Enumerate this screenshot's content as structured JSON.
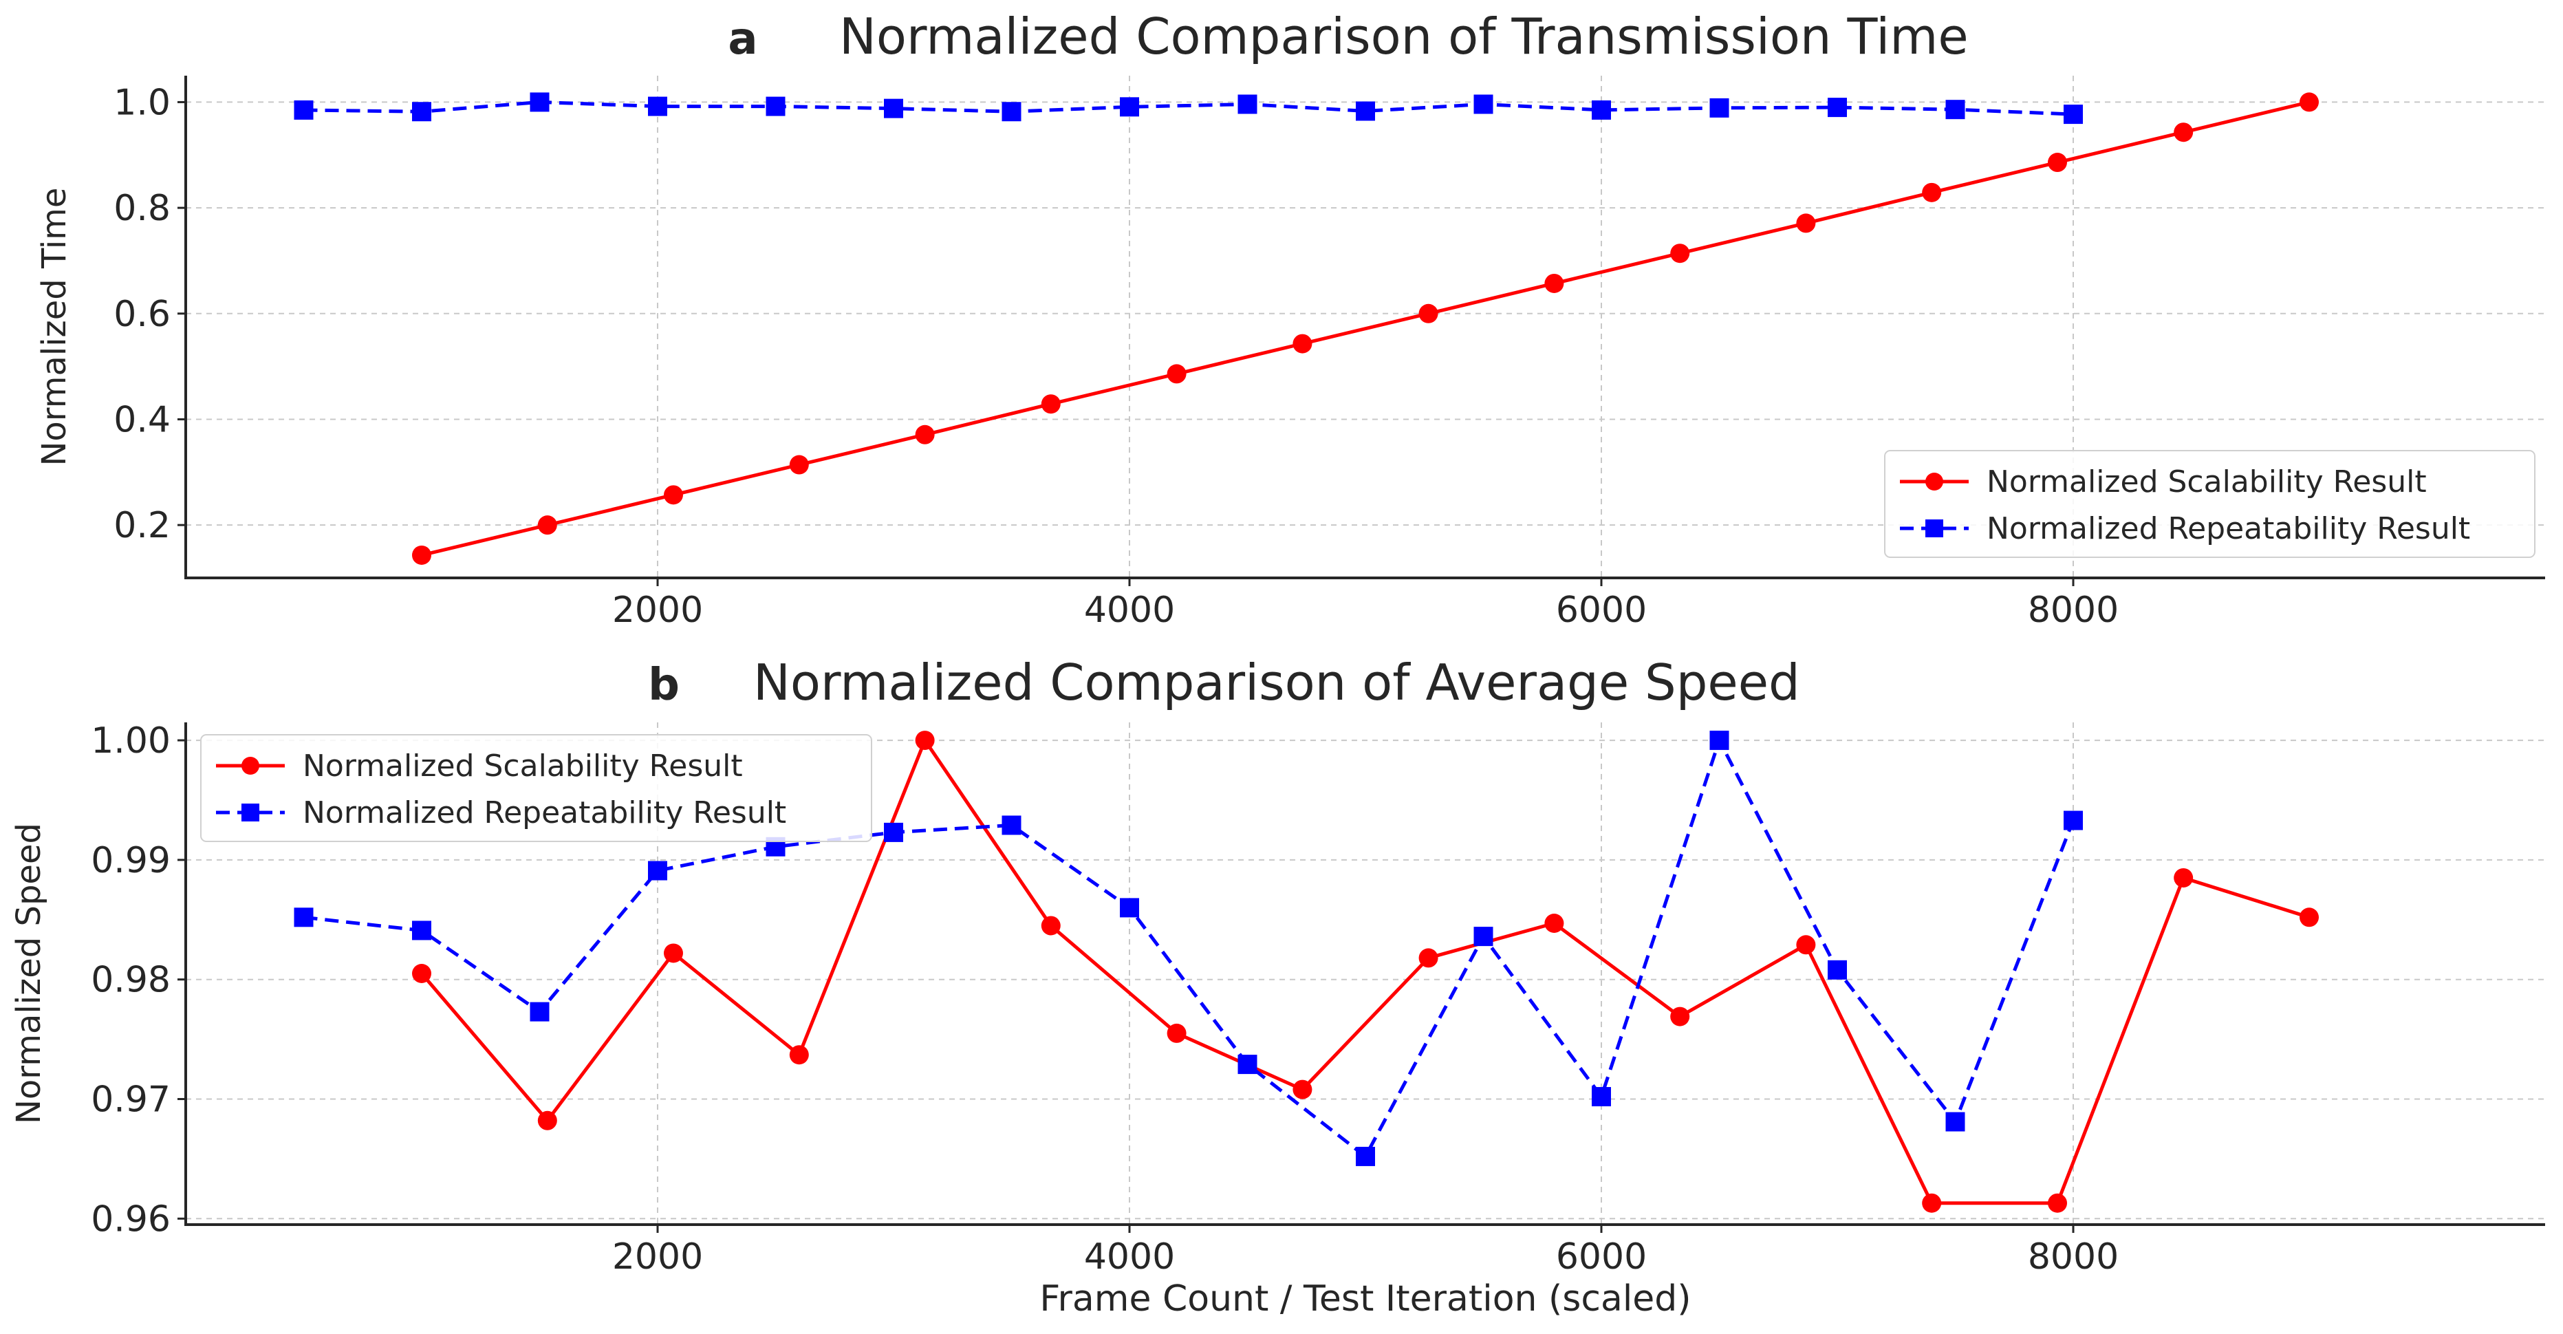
{
  "colors": {
    "scalability": "#ff0000",
    "repeatability": "#0000ff",
    "grid": "#c8c8c8",
    "axis": "#262626",
    "background": "#ffffff"
  },
  "chart_data": [
    {
      "type": "line",
      "panel_label": "a",
      "title": "Normalized Comparison of Transmission Time",
      "xlabel": "",
      "ylabel": "Normalized Time",
      "xlim": [
        0,
        10000
      ],
      "ylim": [
        0.1,
        1.05
      ],
      "xticks": [
        2000,
        4000,
        6000,
        8000
      ],
      "yticks": [
        0.2,
        0.4,
        0.6,
        0.8,
        1.0
      ],
      "ytick_labels": [
        "0.2",
        "0.4",
        "0.6",
        "0.8",
        "1.0"
      ],
      "grid": true,
      "legend_position": "lower-right",
      "series": [
        {
          "name": "Normalized Scalability Result",
          "style": "solid",
          "marker": "circle",
          "color": "#ff0000",
          "x": [
            1000,
            1533,
            2067,
            2600,
            3133,
            3667,
            4200,
            4733,
            5267,
            5800,
            6333,
            6867,
            7400,
            7933,
            8467,
            9000
          ],
          "y": [
            0.143,
            0.2,
            0.257,
            0.314,
            0.371,
            0.429,
            0.486,
            0.543,
            0.6,
            0.657,
            0.714,
            0.771,
            0.829,
            0.886,
            0.943,
            1.0
          ]
        },
        {
          "name": "Normalized Repeatability Result",
          "style": "dashed",
          "marker": "square",
          "color": "#0000ff",
          "x": [
            500,
            1000,
            1500,
            2000,
            2500,
            3000,
            3500,
            4000,
            4500,
            5000,
            5500,
            6000,
            6500,
            7000,
            7500,
            8000
          ],
          "y": [
            0.985,
            0.982,
            1.0,
            0.992,
            0.992,
            0.988,
            0.982,
            0.991,
            0.996,
            0.983,
            0.996,
            0.985,
            0.989,
            0.99,
            0.986,
            0.977
          ]
        }
      ]
    },
    {
      "type": "line",
      "panel_label": "b",
      "title": "Normalized Comparison of Average Speed",
      "xlabel": "Frame Count / Test Iteration (scaled)",
      "ylabel": "Normalized Speed",
      "xlim": [
        0,
        10000
      ],
      "ylim": [
        0.9595,
        1.0015
      ],
      "xticks": [
        2000,
        4000,
        6000,
        8000
      ],
      "yticks": [
        0.96,
        0.97,
        0.98,
        0.99,
        1.0
      ],
      "ytick_labels": [
        "0.96",
        "0.97",
        "0.98",
        "0.99",
        "1.00"
      ],
      "grid": true,
      "legend_position": "upper-left",
      "series": [
        {
          "name": "Normalized Scalability Result",
          "style": "solid",
          "marker": "circle",
          "color": "#ff0000",
          "x": [
            1000,
            1533,
            2067,
            2600,
            3133,
            3667,
            4200,
            4733,
            5267,
            5800,
            6333,
            6867,
            7400,
            7933,
            8467,
            9000
          ],
          "y": [
            0.9805,
            0.9682,
            0.9822,
            0.9737,
            1.0,
            0.9845,
            0.9755,
            0.9708,
            0.9818,
            0.9847,
            0.9769,
            0.9829,
            0.9613,
            0.9613,
            0.9885,
            0.9852
          ]
        },
        {
          "name": "Normalized Repeatability Result",
          "style": "dashed",
          "marker": "square",
          "color": "#0000ff",
          "x": [
            500,
            1000,
            1500,
            2000,
            2500,
            3000,
            3500,
            4000,
            4500,
            5000,
            5500,
            6000,
            6500,
            7000,
            7500,
            8000
          ],
          "y": [
            0.9852,
            0.9841,
            0.9773,
            0.9891,
            0.9911,
            0.9923,
            0.9929,
            0.986,
            0.9729,
            0.9652,
            0.9836,
            0.9702,
            1.0,
            0.9808,
            0.9681,
            0.9933
          ]
        }
      ]
    }
  ]
}
